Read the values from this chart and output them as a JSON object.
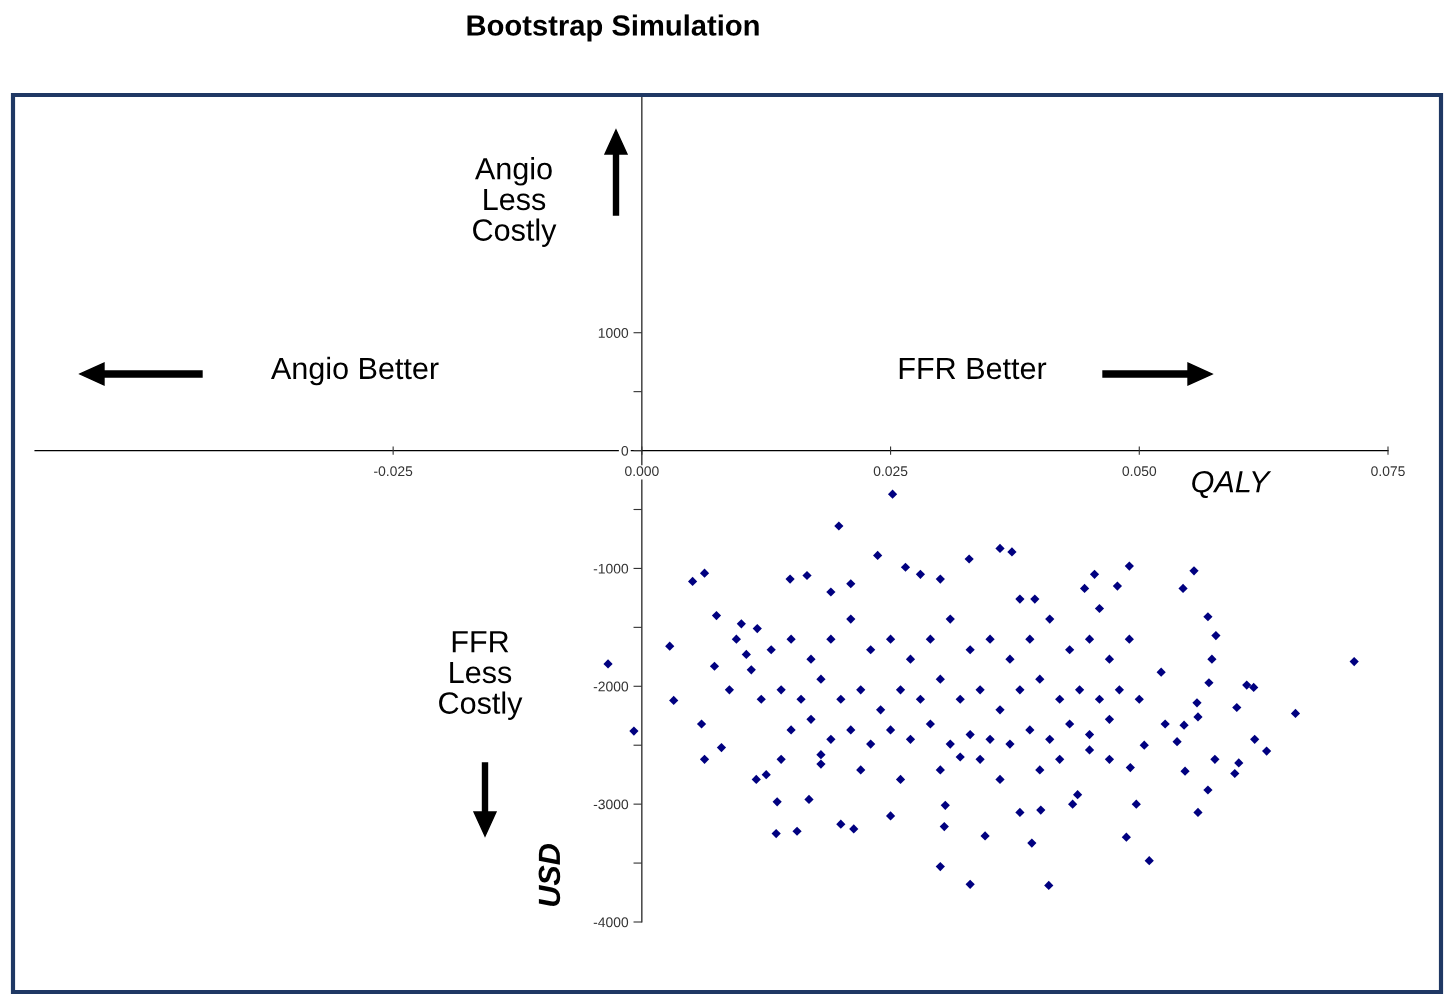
{
  "chart_data": {
    "type": "scatter",
    "title": "Bootstrap Simulation",
    "xlabel": "QALY",
    "ylabel": "USD",
    "annotations": [
      "Angio\nLess\nCostly",
      "Angio Better",
      "FFR Better",
      "FFR\nLess\nCostly"
    ],
    "xlim": [
      -0.061,
      0.075
    ],
    "ylim": [
      -4000,
      3000
    ],
    "xticks": [
      {
        "value": -0.025,
        "label": "-0.025"
      },
      {
        "value": 0,
        "label": "0.000"
      },
      {
        "value": 0.025,
        "label": "0.025"
      },
      {
        "value": 0.05,
        "label": "0.050"
      },
      {
        "value": 0.075,
        "label": "0.075"
      }
    ],
    "yticks": [
      {
        "value": 1000,
        "label": "1000"
      },
      {
        "value": 500,
        "label": null
      },
      {
        "value": 0,
        "label": "0"
      },
      {
        "value": -500,
        "label": null
      },
      {
        "value": -1000,
        "label": "-1000"
      },
      {
        "value": -1500,
        "label": null
      },
      {
        "value": -2000,
        "label": "-2000"
      },
      {
        "value": -2500,
        "label": null
      },
      {
        "value": -3000,
        "label": "-3000"
      },
      {
        "value": -3500,
        "label": null
      },
      {
        "value": -4000,
        "label": "-4000"
      }
    ],
    "grid": false,
    "marker": "diamond",
    "series": [
      {
        "color": "#000080",
        "x": [
          -0.0034,
          -0.0008,
          0.0252,
          0.0198,
          0.0028,
          0.0032,
          0.0051,
          0.0063,
          0.0716,
          0.0657,
          0.0628,
          0.0555,
          0.0544,
          0.03,
          0.033,
          0.0409,
          0.051,
          0.0487,
          0.0135,
          0.0156,
          0.0372,
          0.036,
          0.0329,
          0.0237,
          0.049,
          0.0569,
          0.0577,
          0.0573,
          0.057,
          0.0608,
          0.0615,
          0.0598,
          0.0616,
          0.06,
          0.0596,
          0.0576,
          0.0569,
          0.0559,
          0.0546,
          0.0538,
          0.0558,
          0.0559,
          0.0545,
          0.0522,
          0.0526,
          0.0505,
          0.0491,
          0.006,
          0.0063,
          0.0073,
          0.008,
          0.0088,
          0.0115,
          0.0125,
          0.0136,
          0.0168,
          0.018,
          0.02,
          0.0213,
          0.025,
          0.0304,
          0.0305,
          0.032,
          0.038,
          0.0401,
          0.0433,
          0.0438,
          0.045,
          0.047,
          0.0497,
          0.0392,
          0.0345,
          0.01,
          0.0075,
          0.0095,
          0.0105,
          0.0116,
          0.0149,
          0.0166,
          0.019,
          0.021,
          0.0265,
          0.028,
          0.03,
          0.038,
          0.0395,
          0.0445,
          0.0455,
          0.0478,
          0.046,
          0.015,
          0.017,
          0.019,
          0.021,
          0.023,
          0.025,
          0.027,
          0.029,
          0.031,
          0.033,
          0.035,
          0.037,
          0.039,
          0.041,
          0.043,
          0.045,
          0.047,
          0.049,
          0.014,
          0.016,
          0.018,
          0.02,
          0.022,
          0.024,
          0.026,
          0.028,
          0.03,
          0.032,
          0.034,
          0.036,
          0.038,
          0.04,
          0.042,
          0.044,
          0.046,
          0.048,
          0.05,
          0.015,
          0.017,
          0.019,
          0.021,
          0.023,
          0.025,
          0.027,
          0.029,
          0.031,
          0.033,
          0.035,
          0.037,
          0.039,
          0.041,
          0.043,
          0.045,
          0.047,
          0.014,
          0.018,
          0.022,
          0.026,
          0.03,
          0.034,
          0.036,
          0.04,
          0.042,
          0.012,
          0.013,
          0.011
        ],
        "values": [
          -1810,
          -2380,
          -370,
          -640,
          -1660,
          -2120,
          -1110,
          -1040,
          -1790,
          -2230,
          -2550,
          -1020,
          -1170,
          -3530,
          -3680,
          -3690,
          -3480,
          -3280,
          -3250,
          -3230,
          -860,
          -830,
          -920,
          -890,
          -980,
          -1410,
          -1570,
          -1770,
          -1970,
          -1990,
          -2010,
          -2180,
          -2450,
          -2650,
          -2740,
          -2620,
          -2880,
          -3070,
          -2720,
          -2470,
          -2140,
          -2260,
          -2330,
          -1880,
          -2320,
          -2500,
          -2690,
          -2320,
          -2620,
          -1830,
          -2520,
          -2030,
          -2790,
          -2750,
          -2980,
          -2960,
          -2660,
          -3170,
          -3210,
          -3100,
          -3190,
          -3010,
          -2600,
          -3070,
          -3050,
          -3000,
          -2920,
          -2540,
          -2620,
          -3000,
          -3330,
          -3270,
          -1470,
          -1400,
          -1600,
          -1730,
          -1510,
          -1090,
          -1060,
          -1200,
          -1130,
          -990,
          -1050,
          -1090,
          -1260,
          -1260,
          -1170,
          -1050,
          -1150,
          -1340,
          -1600,
          -1770,
          -1600,
          -1430,
          -1690,
          -1600,
          -1770,
          -1600,
          -1430,
          -1690,
          -1600,
          -1770,
          -1600,
          -1430,
          -1690,
          -1600,
          -1770,
          -1600,
          -2030,
          -2110,
          -1940,
          -2110,
          -2030,
          -2200,
          -2030,
          -2110,
          -1940,
          -2110,
          -2030,
          -2200,
          -2030,
          -1940,
          -2110,
          -2030,
          -2110,
          -2030,
          -2110,
          -2370,
          -2280,
          -2450,
          -2370,
          -2490,
          -2370,
          -2450,
          -2320,
          -2490,
          -2410,
          -2450,
          -2490,
          -2370,
          -2450,
          -2320,
          -2410,
          -2280,
          -2620,
          -2580,
          -2710,
          -2790,
          -2710,
          -2620,
          -2790,
          -2710,
          -2620,
          -2110,
          -1690,
          -1860
        ]
      }
    ]
  }
}
